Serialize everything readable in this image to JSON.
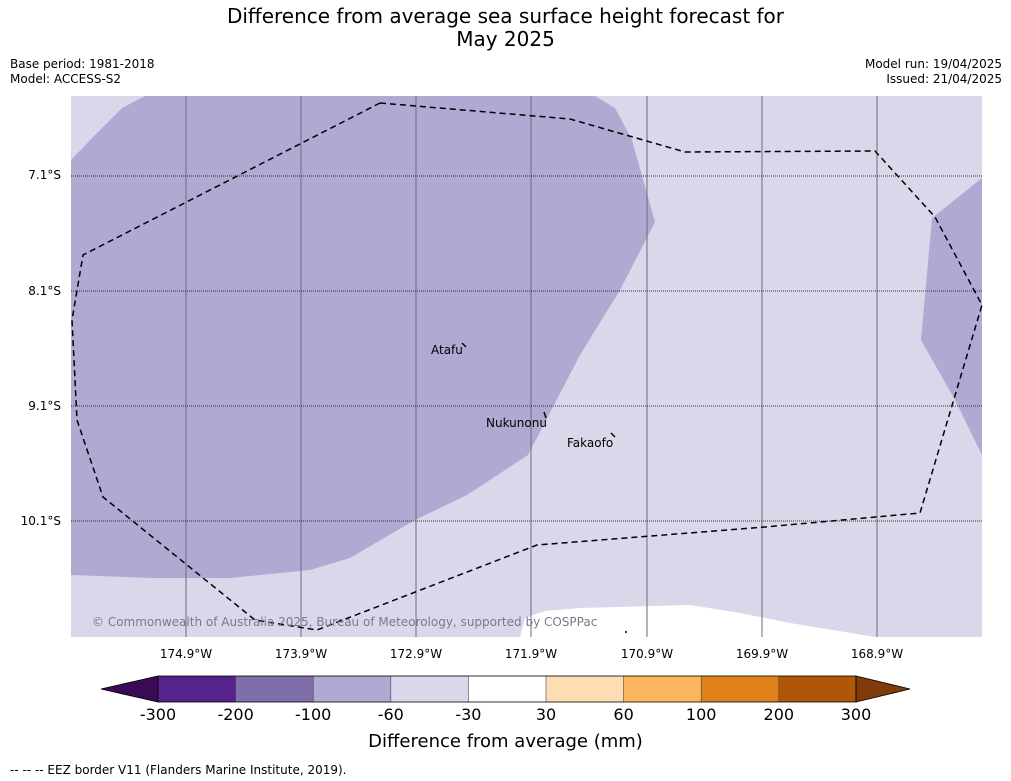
{
  "title": {
    "line1": "Difference from average sea surface height forecast for",
    "line2": "May 2025"
  },
  "meta": {
    "base_period": "Base period: 1981-2018",
    "model": "Model: ACCESS-S2",
    "model_run": "Model run: 19/04/2025",
    "issued": "Issued: 21/04/2025"
  },
  "map": {
    "lat_labels": [
      "7.1°S",
      "8.1°S",
      "9.1°S",
      "10.1°S"
    ],
    "lon_labels": [
      "174.9°W",
      "173.9°W",
      "172.9°W",
      "171.9°W",
      "170.9°W",
      "169.9°W",
      "168.9°W"
    ],
    "places": [
      "Atafu",
      "Nukunonu",
      "Fakaofo"
    ],
    "copyright": "© Commonwealth of Australia 2025, Bureau of Meteorology, supported by COSPPac",
    "colors": {
      "band_-100_-60": "#b0aad3",
      "band_-60_-30": "#d8d8ea",
      "band_-30_30": "#ffffff"
    }
  },
  "colorbar": {
    "tick_labels": [
      "-300",
      "-200",
      "-100",
      "-60",
      "-30",
      "30",
      "60",
      "100",
      "200",
      "300"
    ],
    "colors": [
      "#3b0a55",
      "#56238c",
      "#7f6eaa",
      "#b0aad3",
      "#d8d8ea",
      "#ffffff",
      "#fddeb2",
      "#fbb55f",
      "#e0811a",
      "#b05608",
      "#7f3c0a"
    ],
    "title": "Difference from average (mm)"
  },
  "footnote": "--  --  -- EEZ border V11 (Flanders Marine Institute, 2019)."
}
